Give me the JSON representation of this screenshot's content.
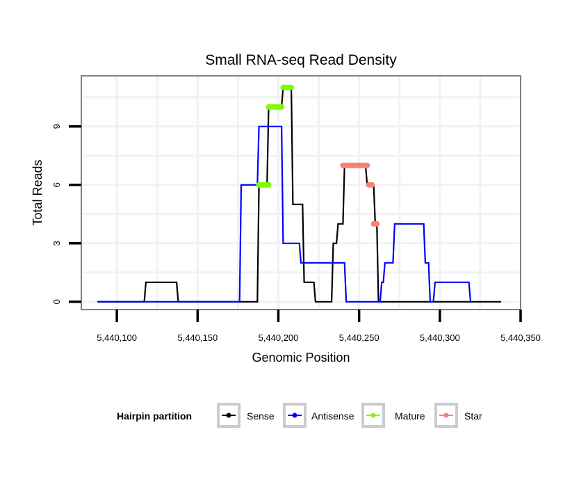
{
  "chart_data": {
    "type": "line",
    "title": "Small RNA-seq Read Density",
    "xlabel": "Genomic Position",
    "ylabel": "Total Reads",
    "xlim": [
      5440078,
      5440350
    ],
    "ylim": [
      -0.4,
      11.6
    ],
    "x_ticks": [
      5440100,
      5440150,
      5440200,
      5440250,
      5440300,
      5440350
    ],
    "x_tick_labels": [
      "5,440,100",
      "5,440,150",
      "5,440,200",
      "5,440,250",
      "5,440,300",
      "5,440,350"
    ],
    "y_ticks": [
      0,
      3,
      6,
      9
    ],
    "y_tick_labels": [
      "0",
      "3",
      "6",
      "9"
    ],
    "grid": true,
    "legend": {
      "title": "Hairpin partition",
      "position": "bottom",
      "entries": [
        {
          "name": "Sense",
          "color": "#000000"
        },
        {
          "name": "Antisense",
          "color": "#0000ff"
        },
        {
          "name": "Mature",
          "color": "#7cfc00"
        },
        {
          "name": "Star",
          "color": "#fa8072"
        }
      ]
    },
    "series": [
      {
        "name": "Sense",
        "style": "step-line",
        "color": "#000000",
        "points": [
          [
            5440088,
            0
          ],
          [
            5440117,
            0
          ],
          [
            5440118,
            1
          ],
          [
            5440137,
            1
          ],
          [
            5440138,
            0
          ],
          [
            5440187,
            0
          ],
          [
            5440188,
            6
          ],
          [
            5440193,
            6
          ],
          [
            5440194,
            10
          ],
          [
            5440202,
            10
          ],
          [
            5440203,
            11
          ],
          [
            5440208,
            11
          ],
          [
            5440209,
            5
          ],
          [
            5440215,
            5
          ],
          [
            5440216,
            1
          ],
          [
            5440222,
            1
          ],
          [
            5440223,
            0
          ],
          [
            5440233,
            0
          ],
          [
            5440234,
            3
          ],
          [
            5440236,
            3
          ],
          [
            5440237,
            4
          ],
          [
            5440240,
            4
          ],
          [
            5440241,
            7
          ],
          [
            5440254,
            7
          ],
          [
            5440255,
            6
          ],
          [
            5440259,
            6
          ],
          [
            5440260,
            4
          ],
          [
            5440261,
            4
          ],
          [
            5440262,
            0
          ],
          [
            5440338,
            0
          ]
        ]
      },
      {
        "name": "Antisense",
        "style": "step-line",
        "color": "#0000ff",
        "points": [
          [
            5440088,
            0
          ],
          [
            5440176,
            0
          ],
          [
            5440177,
            6
          ],
          [
            5440187,
            6
          ],
          [
            5440188,
            9
          ],
          [
            5440202,
            9
          ],
          [
            5440203,
            3
          ],
          [
            5440213,
            3
          ],
          [
            5440214,
            2
          ],
          [
            5440241,
            2
          ],
          [
            5440242,
            0
          ],
          [
            5440263,
            0
          ],
          [
            5440264,
            1
          ],
          [
            5440265,
            1
          ],
          [
            5440266,
            2
          ],
          [
            5440271,
            2
          ],
          [
            5440272,
            4
          ],
          [
            5440290,
            4
          ],
          [
            5440291,
            2
          ],
          [
            5440293,
            2
          ],
          [
            5440294,
            0
          ],
          [
            5440296,
            0
          ],
          [
            5440297,
            1
          ],
          [
            5440318,
            1
          ],
          [
            5440319,
            0
          ]
        ]
      },
      {
        "name": "Mature",
        "style": "points",
        "color": "#7cfc00",
        "points": [
          [
            5440188,
            6
          ],
          [
            5440189,
            6
          ],
          [
            5440190,
            6
          ],
          [
            5440191,
            6
          ],
          [
            5440192,
            6
          ],
          [
            5440193,
            6
          ],
          [
            5440194,
            6
          ],
          [
            5440194,
            10
          ],
          [
            5440195,
            10
          ],
          [
            5440196,
            10
          ],
          [
            5440197,
            10
          ],
          [
            5440198,
            10
          ],
          [
            5440199,
            10
          ],
          [
            5440200,
            10
          ],
          [
            5440201,
            10
          ],
          [
            5440202,
            10
          ],
          [
            5440203,
            11
          ],
          [
            5440204,
            11
          ],
          [
            5440205,
            11
          ],
          [
            5440206,
            11
          ],
          [
            5440207,
            11
          ],
          [
            5440208,
            11
          ]
        ]
      },
      {
        "name": "Star",
        "style": "points",
        "color": "#fa8072",
        "points": [
          [
            5440240,
            7
          ],
          [
            5440241,
            7
          ],
          [
            5440242,
            7
          ],
          [
            5440243,
            7
          ],
          [
            5440244,
            7
          ],
          [
            5440245,
            7
          ],
          [
            5440246,
            7
          ],
          [
            5440247,
            7
          ],
          [
            5440248,
            7
          ],
          [
            5440249,
            7
          ],
          [
            5440250,
            7
          ],
          [
            5440251,
            7
          ],
          [
            5440252,
            7
          ],
          [
            5440253,
            7
          ],
          [
            5440254,
            7
          ],
          [
            5440255,
            7
          ],
          [
            5440256,
            6
          ],
          [
            5440257,
            6
          ],
          [
            5440258,
            6
          ],
          [
            5440259,
            4
          ],
          [
            5440260,
            4
          ],
          [
            5440261,
            4
          ]
        ]
      }
    ]
  }
}
